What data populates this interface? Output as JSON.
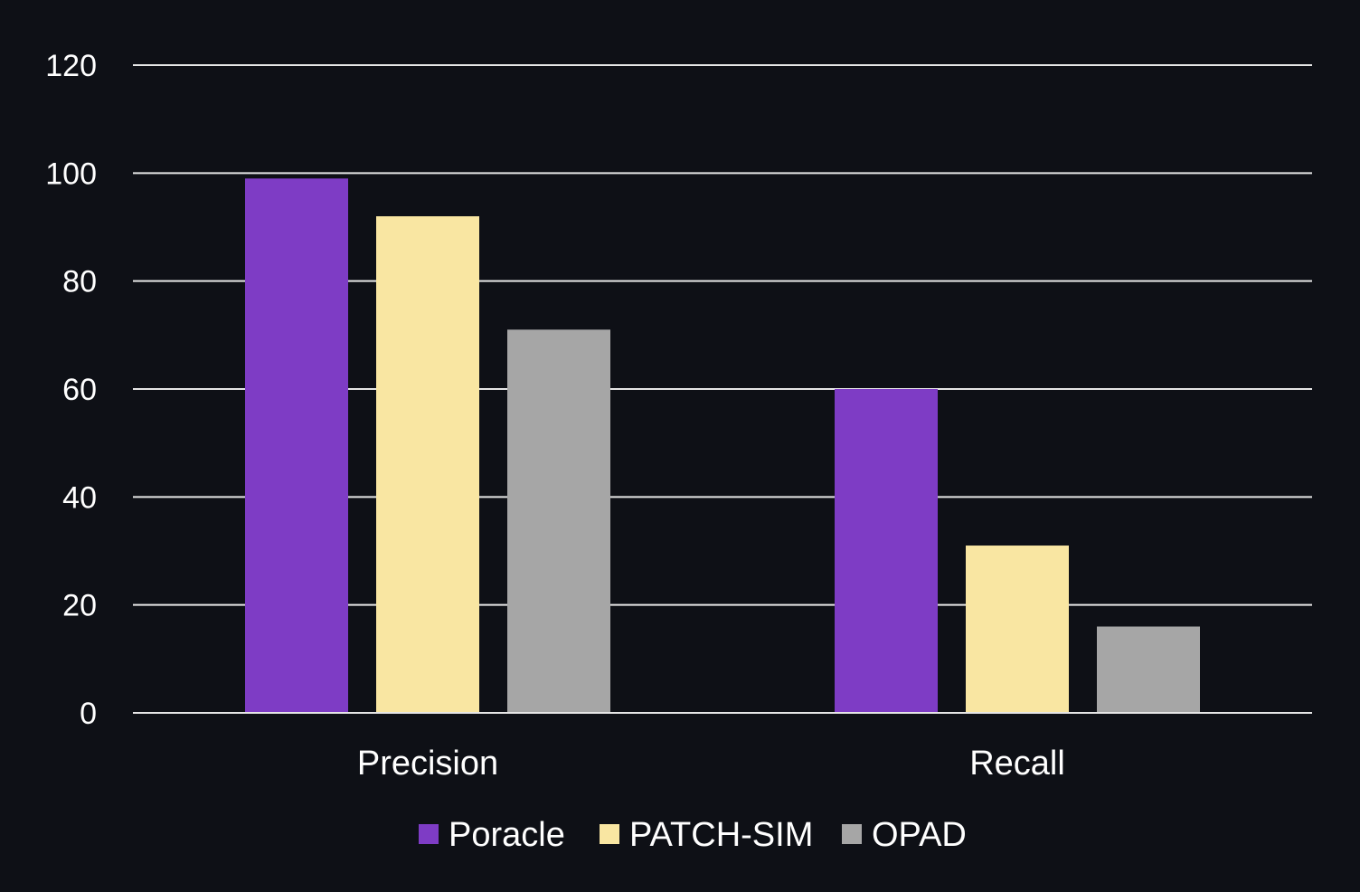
{
  "chart_data": {
    "type": "bar",
    "categories": [
      "Precision",
      "Recall"
    ],
    "series": [
      {
        "name": "Poracle",
        "values": [
          99,
          60
        ],
        "color": "#7e3cc5"
      },
      {
        "name": "PATCH-SIM",
        "values": [
          92,
          31
        ],
        "color": "#f9e6a2"
      },
      {
        "name": "OPAD",
        "values": [
          71,
          16
        ],
        "color": "#a6a6a6"
      }
    ],
    "ylim": [
      0,
      120
    ],
    "yticks": [
      0,
      20,
      40,
      60,
      80,
      100,
      120
    ],
    "grid": true,
    "legend_position": "bottom",
    "colors": {
      "background": "#0e1016",
      "gridline": "#e6e6e6",
      "text": "#ffffff"
    }
  }
}
